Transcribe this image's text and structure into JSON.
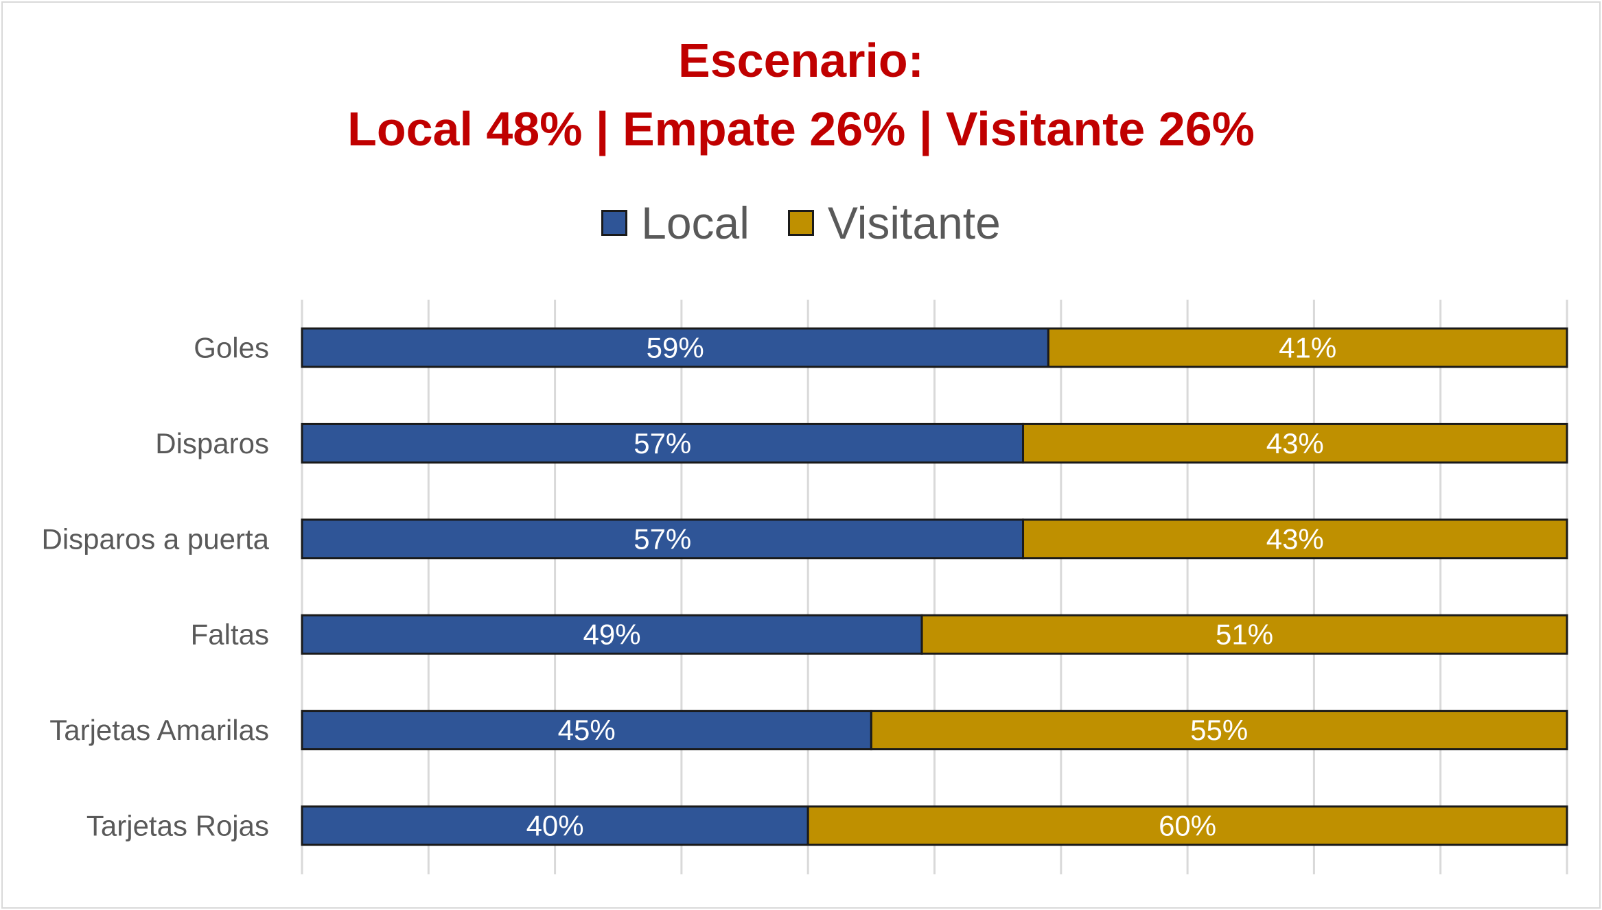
{
  "colors": {
    "title": "#c00000",
    "local": "#2f5597",
    "visitante": "#bf9000",
    "grid": "#d9d9d9",
    "category_label": "#595959",
    "data_label": "#ffffff",
    "bar_border": "#1a1a1a"
  },
  "chart_data": {
    "type": "bar",
    "orientation": "horizontal",
    "stacking": "percent",
    "title": "Escenario:",
    "subtitle": "Local 48% | Empate 26% | Visitante 26%",
    "xlabel": "",
    "ylabel": "",
    "xlim": [
      0,
      100
    ],
    "grid": true,
    "legend_position": "top",
    "categories": [
      "Goles",
      "Disparos",
      "Disparos a puerta",
      "Faltas",
      "Tarjetas Amarilas",
      "Tarjetas Rojas"
    ],
    "series": [
      {
        "name": "Local",
        "color": "#2f5597",
        "values": [
          59,
          57,
          57,
          49,
          45,
          40
        ],
        "labels": [
          "59%",
          "57%",
          "57%",
          "49%",
          "45%",
          "40%"
        ]
      },
      {
        "name": "Visitante",
        "color": "#bf9000",
        "values": [
          41,
          43,
          43,
          51,
          55,
          60
        ],
        "labels": [
          "41%",
          "43%",
          "43%",
          "51%",
          "55%",
          "60%"
        ]
      }
    ]
  }
}
